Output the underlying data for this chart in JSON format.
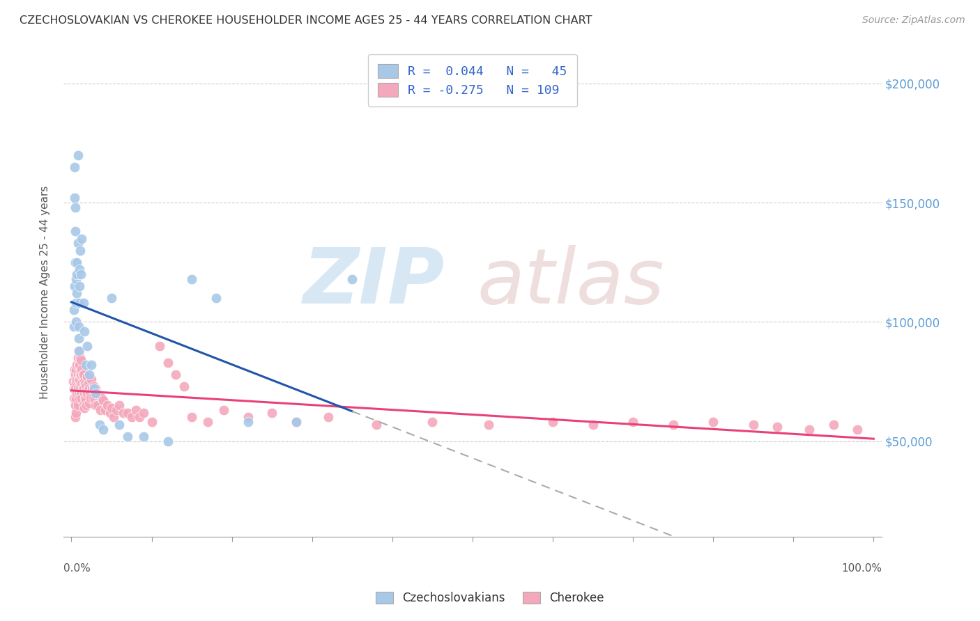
{
  "title": "CZECHOSLOVAKIAN VS CHEROKEE HOUSEHOLDER INCOME AGES 25 - 44 YEARS CORRELATION CHART",
  "source": "Source: ZipAtlas.com",
  "ylabel": "Householder Income Ages 25 - 44 years",
  "ytick_labels": [
    "$50,000",
    "$100,000",
    "$150,000",
    "$200,000"
  ],
  "ytick_values": [
    50000,
    100000,
    150000,
    200000
  ],
  "ylim": [
    10000,
    215000
  ],
  "xlim": [
    -0.01,
    1.01
  ],
  "color_czech": "#a8c8e8",
  "color_cherokee": "#f4a8bc",
  "trendline_czech_solid_color": "#2255aa",
  "trendline_czech_dashed_color": "#aaaaaa",
  "trendline_cherokee_color": "#e8417a",
  "background_color": "#ffffff",
  "legend_entries": [
    {
      "label": "R =  0.044   N =   45",
      "color": "#a8c8e8"
    },
    {
      "label": "R = -0.275   N = 109",
      "color": "#f4a8bc"
    }
  ],
  "bottom_legend": [
    {
      "label": "Czechoslovakians",
      "color": "#a8c8e8"
    },
    {
      "label": "Cherokee",
      "color": "#f4a8bc"
    }
  ],
  "czech_x": [
    0.003,
    0.003,
    0.004,
    0.004,
    0.004,
    0.005,
    0.005,
    0.005,
    0.006,
    0.006,
    0.006,
    0.007,
    0.007,
    0.007,
    0.008,
    0.008,
    0.009,
    0.009,
    0.009,
    0.01,
    0.01,
    0.01,
    0.011,
    0.012,
    0.013,
    0.015,
    0.016,
    0.018,
    0.02,
    0.022,
    0.025,
    0.028,
    0.03,
    0.035,
    0.04,
    0.05,
    0.06,
    0.07,
    0.09,
    0.12,
    0.15,
    0.18,
    0.22,
    0.28,
    0.35
  ],
  "czech_y": [
    105000,
    98000,
    115000,
    165000,
    152000,
    148000,
    138000,
    125000,
    118000,
    108000,
    100000,
    125000,
    120000,
    112000,
    133000,
    170000,
    98000,
    93000,
    88000,
    122000,
    115000,
    108000,
    130000,
    120000,
    135000,
    108000,
    96000,
    82000,
    90000,
    78000,
    82000,
    72000,
    70000,
    57000,
    55000,
    110000,
    57000,
    52000,
    52000,
    50000,
    118000,
    110000,
    58000,
    58000,
    118000
  ],
  "cherokee_x": [
    0.002,
    0.003,
    0.003,
    0.004,
    0.004,
    0.004,
    0.005,
    0.005,
    0.005,
    0.005,
    0.006,
    0.006,
    0.006,
    0.006,
    0.007,
    0.007,
    0.007,
    0.008,
    0.008,
    0.008,
    0.008,
    0.009,
    0.009,
    0.009,
    0.01,
    0.01,
    0.01,
    0.01,
    0.011,
    0.011,
    0.011,
    0.012,
    0.012,
    0.012,
    0.013,
    0.013,
    0.013,
    0.014,
    0.014,
    0.015,
    0.015,
    0.015,
    0.016,
    0.016,
    0.016,
    0.017,
    0.017,
    0.018,
    0.018,
    0.019,
    0.019,
    0.02,
    0.02,
    0.021,
    0.022,
    0.022,
    0.023,
    0.024,
    0.025,
    0.026,
    0.027,
    0.028,
    0.029,
    0.03,
    0.03,
    0.032,
    0.033,
    0.035,
    0.036,
    0.038,
    0.04,
    0.042,
    0.045,
    0.048,
    0.05,
    0.053,
    0.056,
    0.06,
    0.065,
    0.07,
    0.075,
    0.08,
    0.085,
    0.09,
    0.1,
    0.11,
    0.12,
    0.13,
    0.14,
    0.15,
    0.17,
    0.19,
    0.22,
    0.25,
    0.28,
    0.32,
    0.38,
    0.45,
    0.52,
    0.6,
    0.65,
    0.7,
    0.75,
    0.8,
    0.85,
    0.88,
    0.92,
    0.95,
    0.98
  ],
  "cherokee_y": [
    75000,
    72000,
    68000,
    80000,
    74000,
    68000,
    78000,
    72000,
    65000,
    60000,
    80000,
    75000,
    68000,
    62000,
    82000,
    76000,
    70000,
    85000,
    78000,
    72000,
    65000,
    82000,
    76000,
    70000,
    88000,
    82000,
    76000,
    68000,
    85000,
    78000,
    72000,
    84000,
    78000,
    70000,
    80000,
    74000,
    68000,
    78000,
    72000,
    78000,
    72000,
    65000,
    75000,
    70000,
    64000,
    74000,
    68000,
    73000,
    67000,
    71000,
    65000,
    77000,
    70000,
    74000,
    72000,
    66000,
    70000,
    68000,
    76000,
    72000,
    68000,
    73000,
    67000,
    72000,
    65000,
    70000,
    65000,
    69000,
    63000,
    68000,
    67000,
    63000,
    65000,
    62000,
    64000,
    60000,
    63000,
    65000,
    62000,
    62000,
    60000,
    63000,
    60000,
    62000,
    58000,
    90000,
    83000,
    78000,
    73000,
    60000,
    58000,
    63000,
    60000,
    62000,
    58000,
    60000,
    57000,
    58000,
    57000,
    58000,
    57000,
    58000,
    57000,
    58000,
    57000,
    56000,
    55000,
    57000,
    55000
  ],
  "czech_trendline_solid_end_x": 0.35,
  "watermark_zip_color": "#c8ddf0",
  "watermark_atlas_color": "#e8d0d0"
}
